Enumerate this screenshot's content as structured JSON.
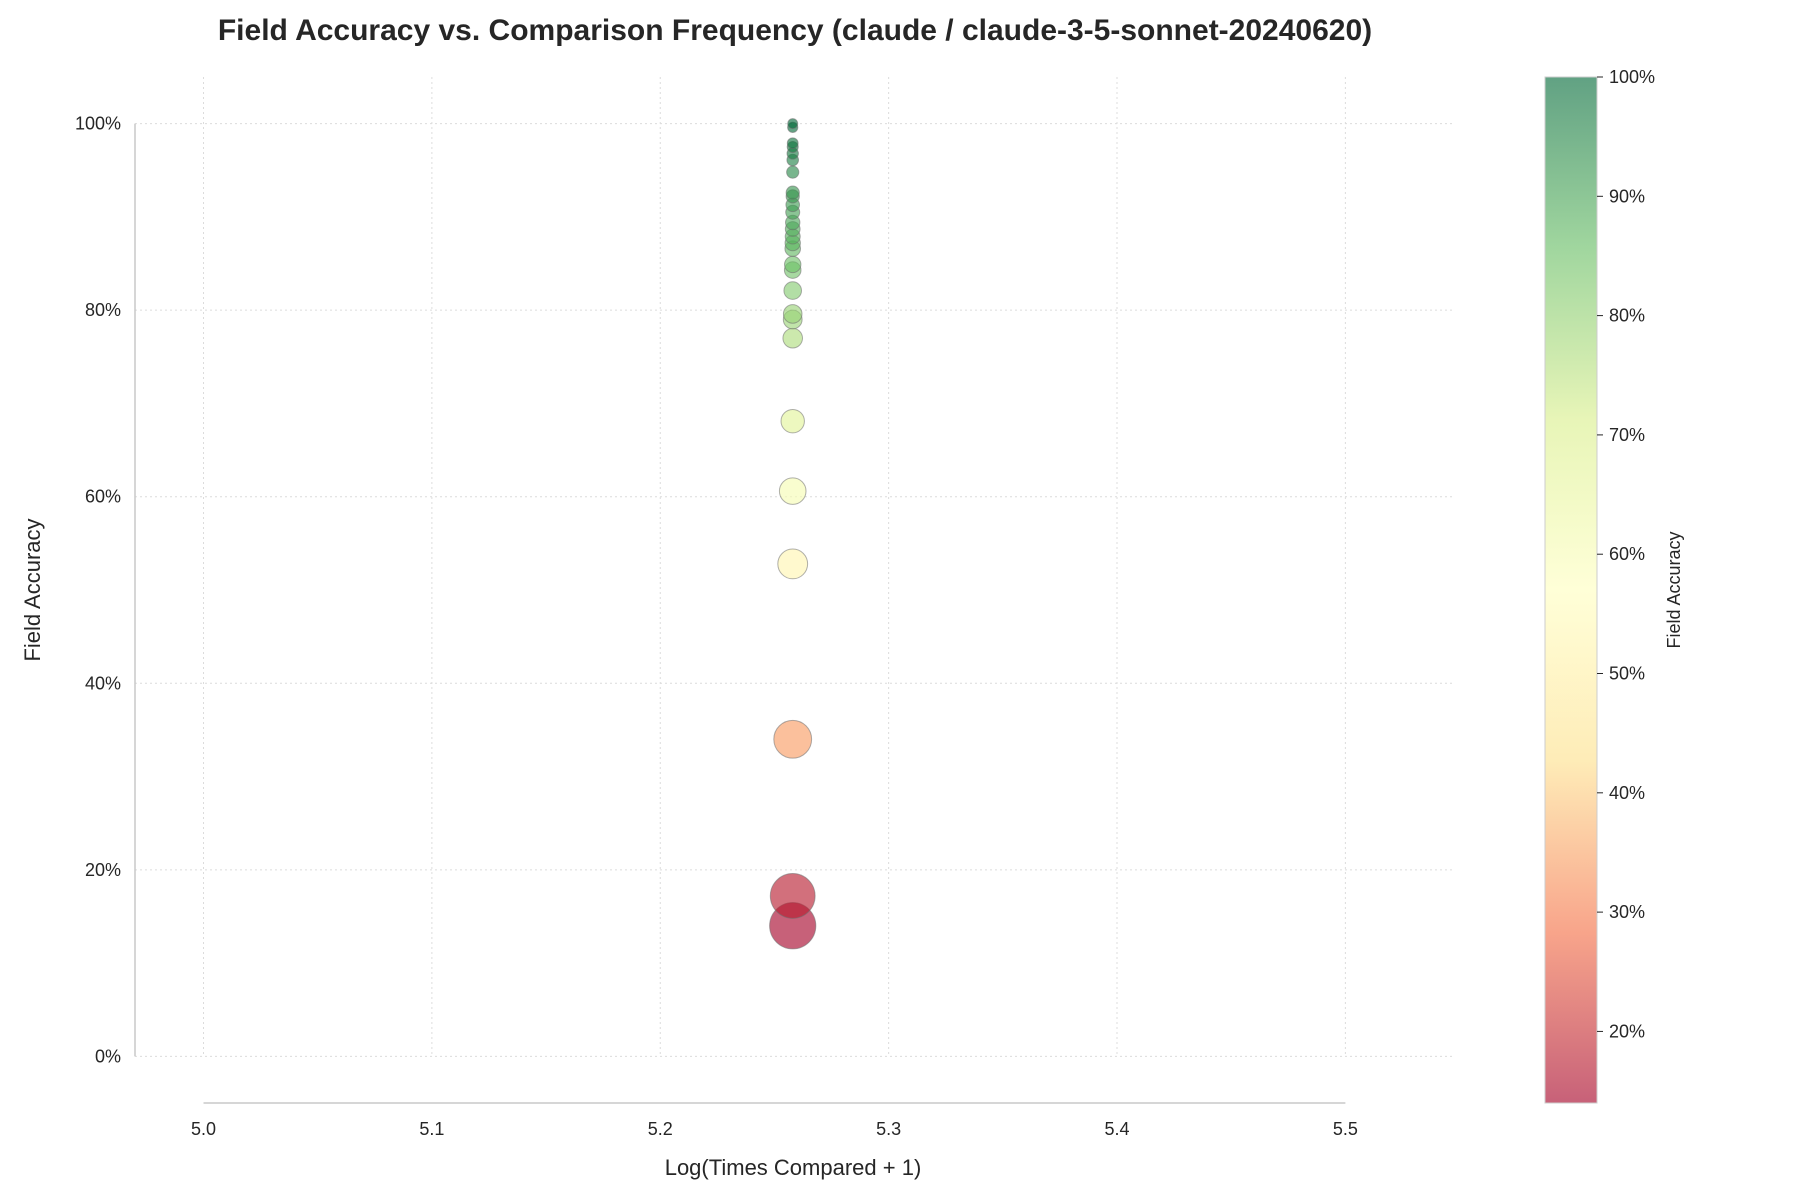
{
  "chart_data": {
    "type": "scatter",
    "title": "Field Accuracy vs. Comparison Frequency (claude / claude-3-5-sonnet-20240620)",
    "xlabel": "Log(Times Compared + 1)",
    "ylabel": "Field Accuracy",
    "xlim": [
      4.97,
      5.548
    ],
    "ylim": [
      -5,
      105
    ],
    "xticks": [
      5.0,
      5.1,
      5.2,
      5.3,
      5.4,
      5.5
    ],
    "xtick_labels": [
      "5.0",
      "5.1",
      "5.2",
      "5.3",
      "5.4",
      "5.5"
    ],
    "yticks": [
      0,
      20,
      40,
      60,
      80,
      100
    ],
    "ytick_labels": [
      "0%",
      "20%",
      "40%",
      "60%",
      "80%",
      "100%"
    ],
    "grid": true,
    "colormap": "RdYlGn",
    "points": [
      {
        "x": 5.258,
        "y": 100.0
      },
      {
        "x": 5.258,
        "y": 99.6
      },
      {
        "x": 5.258,
        "y": 97.9
      },
      {
        "x": 5.258,
        "y": 97.5
      },
      {
        "x": 5.258,
        "y": 96.8
      },
      {
        "x": 5.258,
        "y": 96.1
      },
      {
        "x": 5.258,
        "y": 94.8
      },
      {
        "x": 5.258,
        "y": 92.6
      },
      {
        "x": 5.258,
        "y": 92.2
      },
      {
        "x": 5.258,
        "y": 91.3
      },
      {
        "x": 5.258,
        "y": 90.5
      },
      {
        "x": 5.258,
        "y": 89.4
      },
      {
        "x": 5.258,
        "y": 88.7
      },
      {
        "x": 5.258,
        "y": 87.9
      },
      {
        "x": 5.258,
        "y": 87.2
      },
      {
        "x": 5.258,
        "y": 86.6
      },
      {
        "x": 5.258,
        "y": 84.9
      },
      {
        "x": 5.258,
        "y": 84.3
      },
      {
        "x": 5.258,
        "y": 82.1
      },
      {
        "x": 5.258,
        "y": 79.6
      },
      {
        "x": 5.258,
        "y": 79.0
      },
      {
        "x": 5.258,
        "y": 77.0
      },
      {
        "x": 5.258,
        "y": 68.1
      },
      {
        "x": 5.258,
        "y": 60.6
      },
      {
        "x": 5.258,
        "y": 52.8
      },
      {
        "x": 5.258,
        "y": 34.0
      },
      {
        "x": 5.258,
        "y": 17.2
      },
      {
        "x": 5.258,
        "y": 14.0
      }
    ],
    "colorbar": {
      "label": "Field Accuracy",
      "range": [
        14.0,
        100.0
      ],
      "ticks": [
        20,
        30,
        40,
        50,
        60,
        70,
        80,
        90,
        100
      ],
      "tick_labels": [
        "20%",
        "30%",
        "40%",
        "50%",
        "60%",
        "70%",
        "80%",
        "90%",
        "100%"
      ],
      "colors": [
        "#a50026",
        "#f46d43",
        "#fee08b",
        "#ffffbf",
        "#d9ef8b",
        "#66bd63",
        "#006837"
      ]
    }
  }
}
